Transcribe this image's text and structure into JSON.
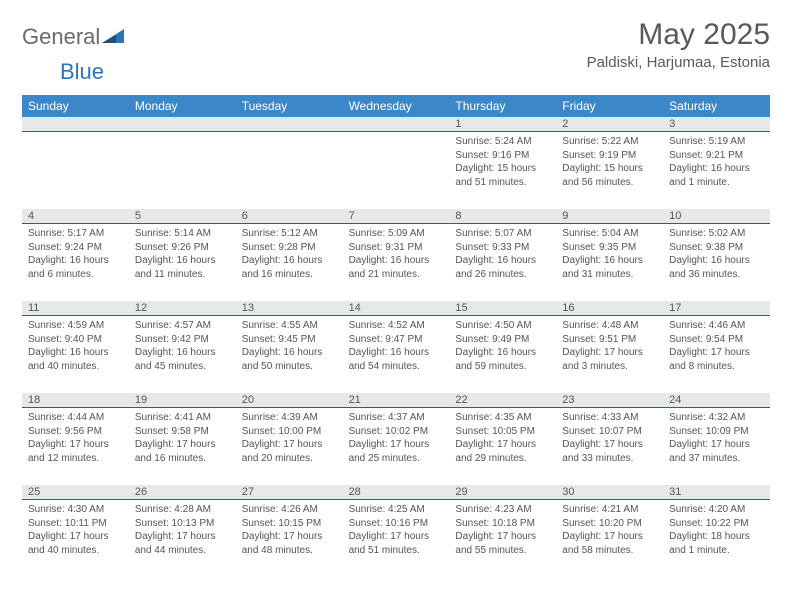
{
  "logo": {
    "text1": "General",
    "text2": "Blue"
  },
  "title": "May 2025",
  "location": "Paldiski, Harjumaa, Estonia",
  "header_bg": "#3b87c8",
  "band_bg": "#e8e8e8",
  "rule_color": "#2e5f8a",
  "weekdays": [
    "Sunday",
    "Monday",
    "Tuesday",
    "Wednesday",
    "Thursday",
    "Friday",
    "Saturday"
  ],
  "weeks": [
    [
      null,
      null,
      null,
      null,
      {
        "n": "1",
        "sr": "5:24 AM",
        "ss": "9:16 PM",
        "dl": "15 hours and 51 minutes."
      },
      {
        "n": "2",
        "sr": "5:22 AM",
        "ss": "9:19 PM",
        "dl": "15 hours and 56 minutes."
      },
      {
        "n": "3",
        "sr": "5:19 AM",
        "ss": "9:21 PM",
        "dl": "16 hours and 1 minute."
      }
    ],
    [
      {
        "n": "4",
        "sr": "5:17 AM",
        "ss": "9:24 PM",
        "dl": "16 hours and 6 minutes."
      },
      {
        "n": "5",
        "sr": "5:14 AM",
        "ss": "9:26 PM",
        "dl": "16 hours and 11 minutes."
      },
      {
        "n": "6",
        "sr": "5:12 AM",
        "ss": "9:28 PM",
        "dl": "16 hours and 16 minutes."
      },
      {
        "n": "7",
        "sr": "5:09 AM",
        "ss": "9:31 PM",
        "dl": "16 hours and 21 minutes."
      },
      {
        "n": "8",
        "sr": "5:07 AM",
        "ss": "9:33 PM",
        "dl": "16 hours and 26 minutes."
      },
      {
        "n": "9",
        "sr": "5:04 AM",
        "ss": "9:35 PM",
        "dl": "16 hours and 31 minutes."
      },
      {
        "n": "10",
        "sr": "5:02 AM",
        "ss": "9:38 PM",
        "dl": "16 hours and 36 minutes."
      }
    ],
    [
      {
        "n": "11",
        "sr": "4:59 AM",
        "ss": "9:40 PM",
        "dl": "16 hours and 40 minutes."
      },
      {
        "n": "12",
        "sr": "4:57 AM",
        "ss": "9:42 PM",
        "dl": "16 hours and 45 minutes."
      },
      {
        "n": "13",
        "sr": "4:55 AM",
        "ss": "9:45 PM",
        "dl": "16 hours and 50 minutes."
      },
      {
        "n": "14",
        "sr": "4:52 AM",
        "ss": "9:47 PM",
        "dl": "16 hours and 54 minutes."
      },
      {
        "n": "15",
        "sr": "4:50 AM",
        "ss": "9:49 PM",
        "dl": "16 hours and 59 minutes."
      },
      {
        "n": "16",
        "sr": "4:48 AM",
        "ss": "9:51 PM",
        "dl": "17 hours and 3 minutes."
      },
      {
        "n": "17",
        "sr": "4:46 AM",
        "ss": "9:54 PM",
        "dl": "17 hours and 8 minutes."
      }
    ],
    [
      {
        "n": "18",
        "sr": "4:44 AM",
        "ss": "9:56 PM",
        "dl": "17 hours and 12 minutes."
      },
      {
        "n": "19",
        "sr": "4:41 AM",
        "ss": "9:58 PM",
        "dl": "17 hours and 16 minutes."
      },
      {
        "n": "20",
        "sr": "4:39 AM",
        "ss": "10:00 PM",
        "dl": "17 hours and 20 minutes."
      },
      {
        "n": "21",
        "sr": "4:37 AM",
        "ss": "10:02 PM",
        "dl": "17 hours and 25 minutes."
      },
      {
        "n": "22",
        "sr": "4:35 AM",
        "ss": "10:05 PM",
        "dl": "17 hours and 29 minutes."
      },
      {
        "n": "23",
        "sr": "4:33 AM",
        "ss": "10:07 PM",
        "dl": "17 hours and 33 minutes."
      },
      {
        "n": "24",
        "sr": "4:32 AM",
        "ss": "10:09 PM",
        "dl": "17 hours and 37 minutes."
      }
    ],
    [
      {
        "n": "25",
        "sr": "4:30 AM",
        "ss": "10:11 PM",
        "dl": "17 hours and 40 minutes."
      },
      {
        "n": "26",
        "sr": "4:28 AM",
        "ss": "10:13 PM",
        "dl": "17 hours and 44 minutes."
      },
      {
        "n": "27",
        "sr": "4:26 AM",
        "ss": "10:15 PM",
        "dl": "17 hours and 48 minutes."
      },
      {
        "n": "28",
        "sr": "4:25 AM",
        "ss": "10:16 PM",
        "dl": "17 hours and 51 minutes."
      },
      {
        "n": "29",
        "sr": "4:23 AM",
        "ss": "10:18 PM",
        "dl": "17 hours and 55 minutes."
      },
      {
        "n": "30",
        "sr": "4:21 AM",
        "ss": "10:20 PM",
        "dl": "17 hours and 58 minutes."
      },
      {
        "n": "31",
        "sr": "4:20 AM",
        "ss": "10:22 PM",
        "dl": "18 hours and 1 minute."
      }
    ]
  ],
  "labels": {
    "sunrise": "Sunrise:",
    "sunset": "Sunset:",
    "daylight": "Daylight:"
  }
}
